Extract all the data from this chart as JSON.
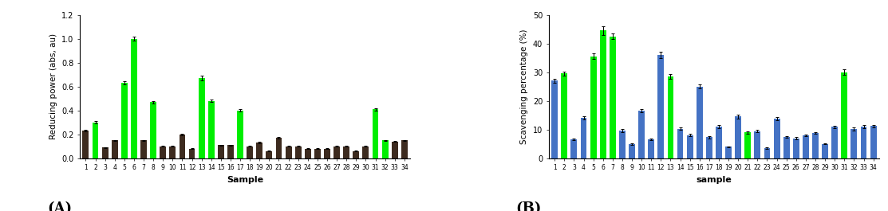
{
  "chart_a": {
    "label": "(A)",
    "xlabel": "Sample",
    "ylabel": "Reducing power (abs, au)",
    "ylim": [
      0.0,
      1.2
    ],
    "yticks": [
      0.0,
      0.2,
      0.4,
      0.6,
      0.8,
      1.0,
      1.2
    ],
    "yticklabels": [
      "0.0",
      "0.2",
      "0.4",
      "0.6",
      "0.8",
      "1.0",
      "1.2"
    ],
    "xlabels": [
      "1",
      "2",
      "3",
      "4",
      "5",
      "6",
      "7",
      "8",
      "9",
      "10",
      "11",
      "12",
      "13",
      "14",
      "15",
      "16",
      "17",
      "18",
      "19",
      "20",
      "21",
      "22",
      "23",
      "24",
      "25",
      "26",
      "27",
      "28",
      "29",
      "30",
      "31",
      "32",
      "33",
      "34"
    ],
    "values": [
      0.23,
      0.3,
      0.09,
      0.15,
      0.63,
      1.0,
      0.15,
      0.47,
      0.1,
      0.1,
      0.2,
      0.08,
      0.67,
      0.48,
      0.11,
      0.11,
      0.4,
      0.1,
      0.13,
      0.06,
      0.17,
      0.1,
      0.1,
      0.08,
      0.08,
      0.08,
      0.1,
      0.1,
      0.06,
      0.1,
      0.41,
      0.15,
      0.14,
      0.15
    ],
    "errors": [
      0.008,
      0.008,
      0.004,
      0.004,
      0.012,
      0.015,
      0.004,
      0.01,
      0.004,
      0.004,
      0.008,
      0.004,
      0.02,
      0.01,
      0.004,
      0.004,
      0.01,
      0.004,
      0.005,
      0.004,
      0.008,
      0.004,
      0.004,
      0.004,
      0.004,
      0.004,
      0.004,
      0.004,
      0.004,
      0.004,
      0.01,
      0.004,
      0.004,
      0.004
    ],
    "green_indices": [
      1,
      4,
      5,
      7,
      12,
      13,
      16,
      30,
      31
    ],
    "default_color": "#3d2b1f",
    "green_color": "#00ee00"
  },
  "chart_b": {
    "label": "(B)",
    "xlabel": "sample",
    "ylabel": "Scavenging percentage (%)",
    "ylim": [
      0,
      50
    ],
    "yticks": [
      0,
      10,
      20,
      30,
      40,
      50
    ],
    "yticklabels": [
      "0",
      "10",
      "20",
      "30",
      "40",
      "50"
    ],
    "xlabels": [
      "1",
      "2",
      "3",
      "4",
      "5",
      "6",
      "7",
      "8",
      "9",
      "10",
      "11",
      "12",
      "13",
      "14",
      "15",
      "16",
      "17",
      "18",
      "19",
      "20",
      "21",
      "22",
      "23",
      "24",
      "25",
      "26",
      "27",
      "28",
      "29",
      "30",
      "31",
      "32",
      "33",
      "34"
    ],
    "values": [
      27.0,
      29.5,
      6.5,
      14.0,
      35.5,
      44.5,
      42.5,
      9.7,
      5.0,
      16.5,
      6.5,
      36.0,
      28.5,
      10.3,
      8.0,
      25.0,
      7.3,
      11.0,
      4.0,
      14.5,
      9.0,
      9.5,
      3.5,
      13.8,
      7.5,
      7.0,
      8.0,
      8.8,
      5.0,
      11.0,
      30.0,
      10.2,
      11.0,
      11.2
    ],
    "errors": [
      0.6,
      0.8,
      0.3,
      0.5,
      1.0,
      1.5,
      1.0,
      0.5,
      0.3,
      0.6,
      0.3,
      1.2,
      0.9,
      0.5,
      0.4,
      0.6,
      0.3,
      0.5,
      0.2,
      0.6,
      0.5,
      0.5,
      0.2,
      0.5,
      0.3,
      0.3,
      0.3,
      0.3,
      0.2,
      0.4,
      0.9,
      0.5,
      0.5,
      0.5
    ],
    "green_indices": [
      1,
      4,
      5,
      6,
      12,
      20,
      30
    ],
    "default_color": "#4472c4",
    "green_color": "#00ee00"
  },
  "fig_width": 11.13,
  "fig_height": 2.65,
  "dpi": 100
}
